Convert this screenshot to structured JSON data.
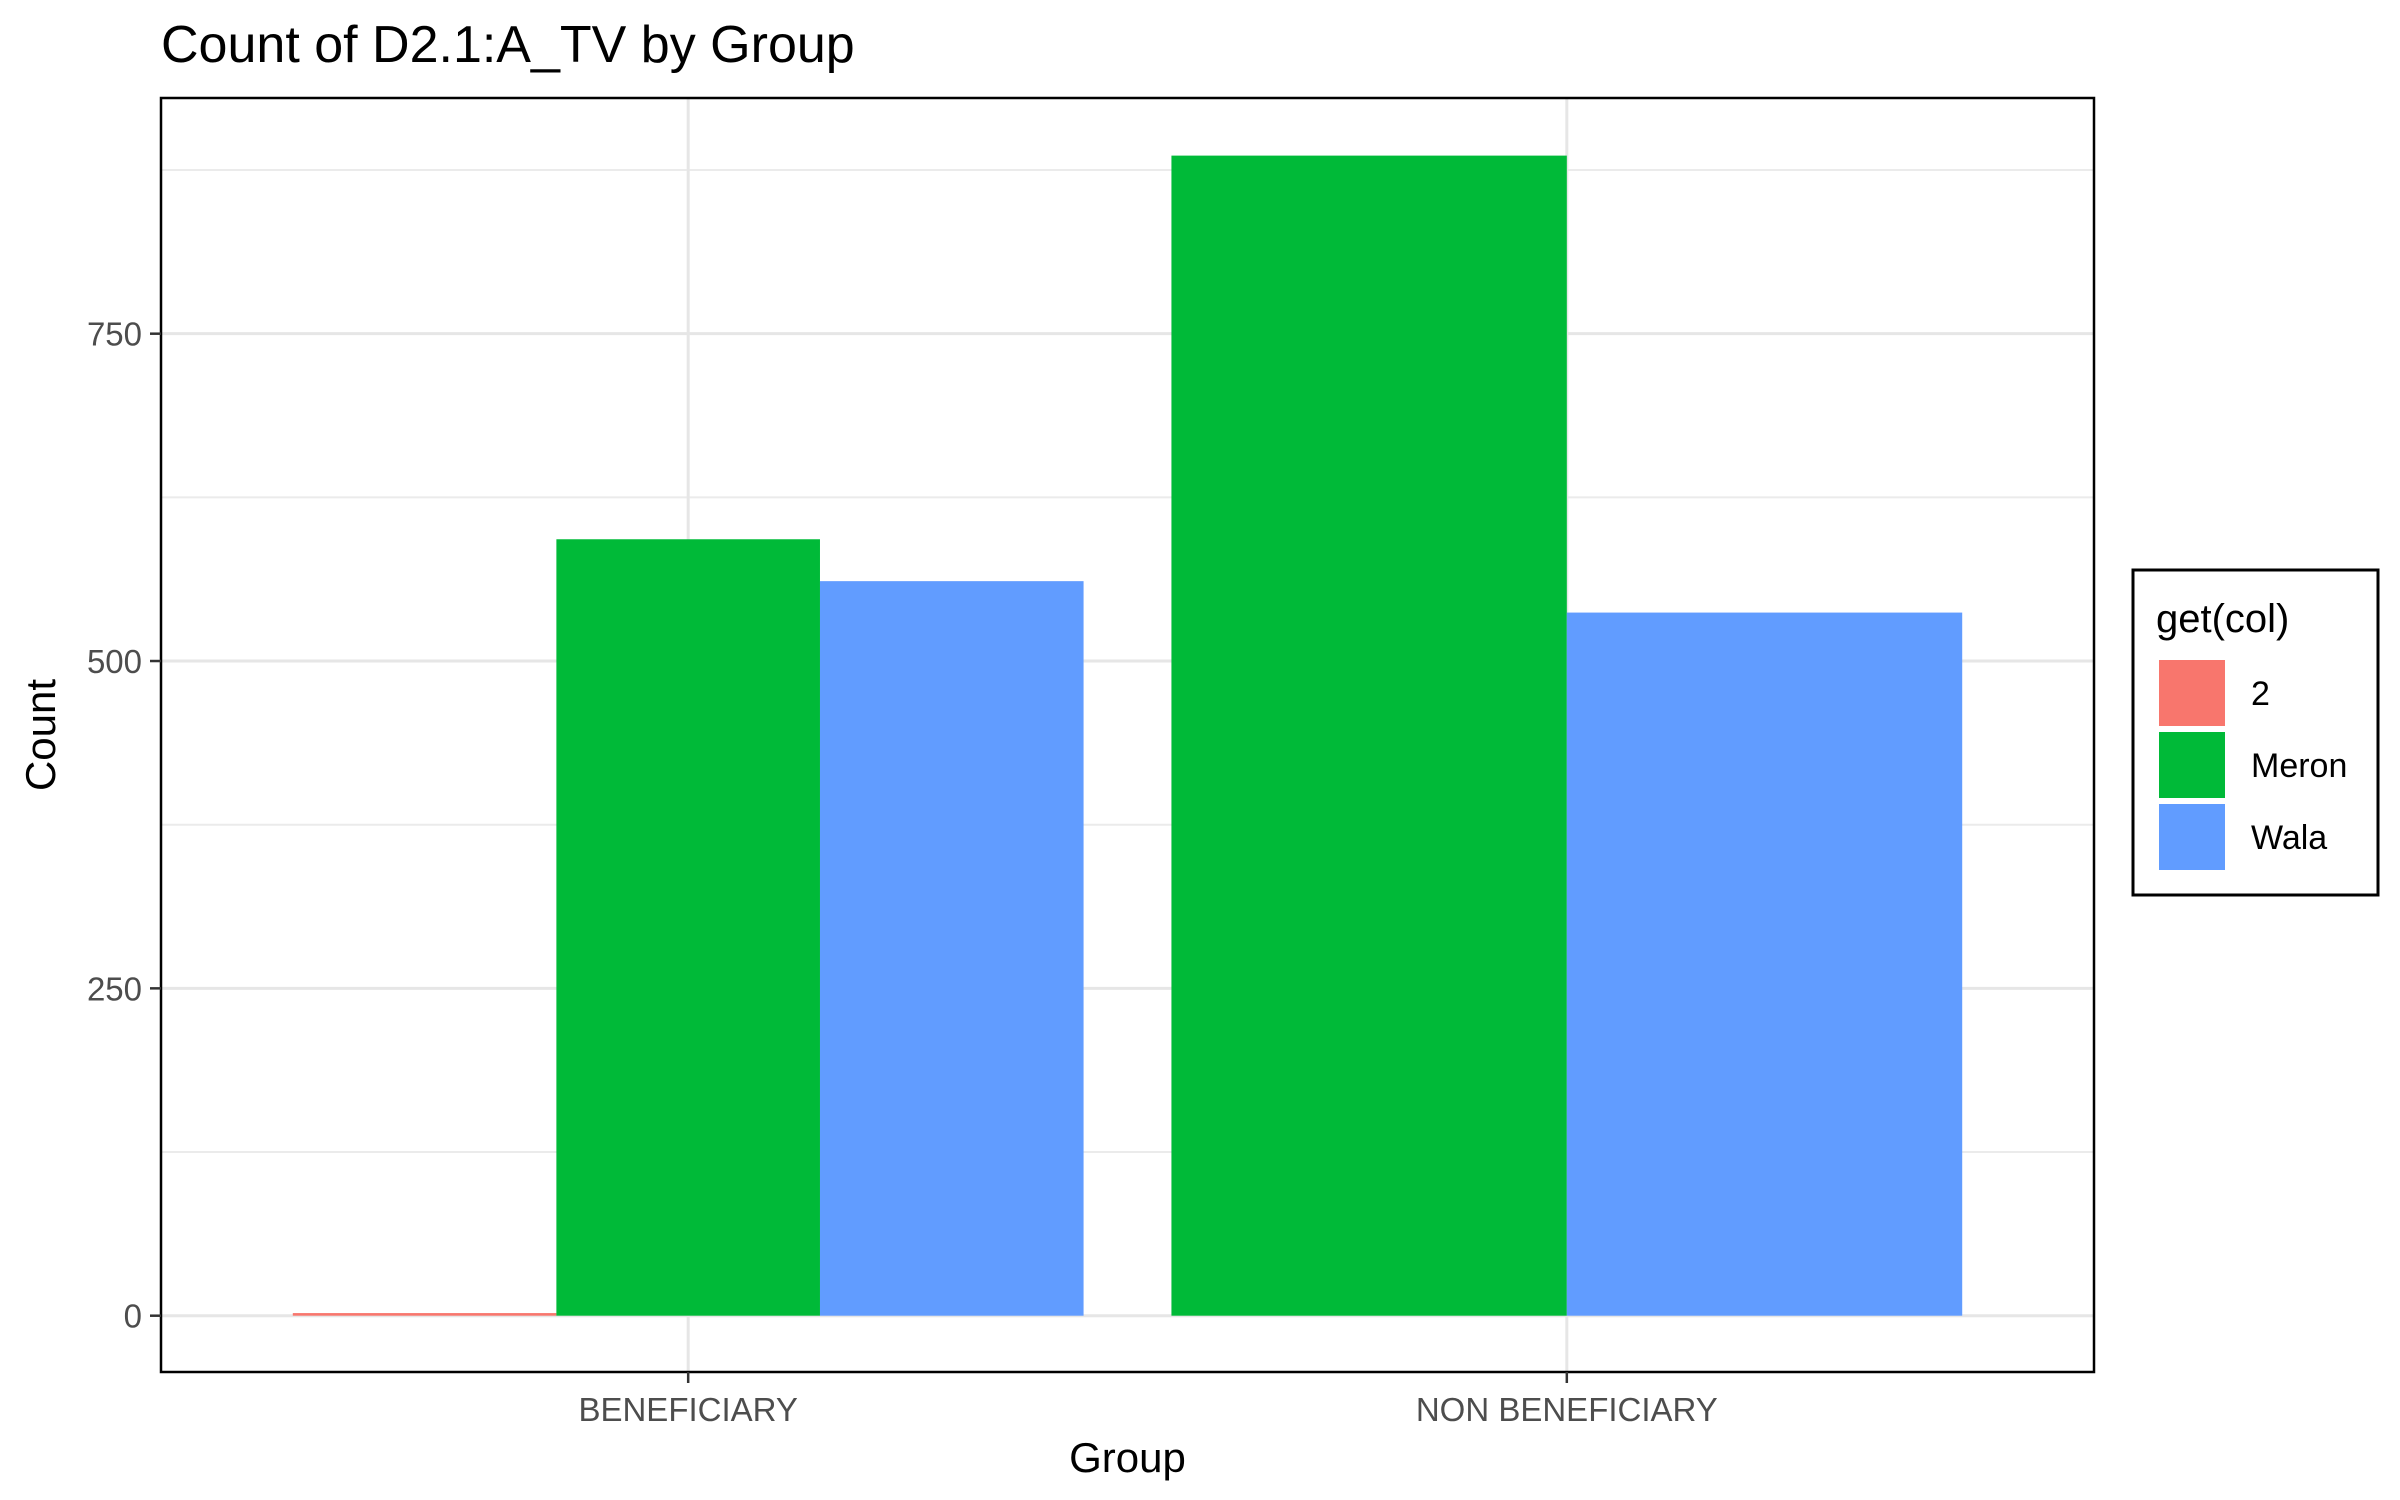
{
  "chart_data": {
    "type": "bar",
    "title": "Count of D2.1:A_TV by Group",
    "xlabel": "Group",
    "ylabel": "Count",
    "categories": [
      "BENEFICIARY",
      "NON BENEFICIARY"
    ],
    "series": [
      {
        "name": "2",
        "color": "#F8766D",
        "values": [
          2,
          0
        ]
      },
      {
        "name": "Meron",
        "color": "#00BA38",
        "values": [
          593,
          886
        ]
      },
      {
        "name": "Wala",
        "color": "#619CFF",
        "values": [
          561,
          537
        ]
      }
    ],
    "ylim": [
      -43,
      930
    ],
    "yticks": [
      0,
      250,
      500,
      750
    ],
    "ytick_labels": [
      "0",
      "250",
      "500",
      "750"
    ],
    "grid": true,
    "legend": {
      "title": "get(col)",
      "position": "right"
    }
  }
}
